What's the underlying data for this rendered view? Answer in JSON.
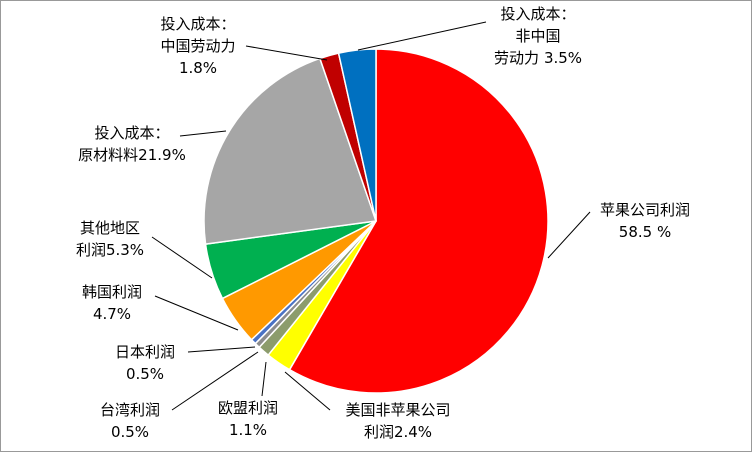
{
  "chart_data": {
    "type": "pie",
    "categories": [
      [
        "苹果公司利润"
      ],
      [
        "美国非苹果公司",
        "利润"
      ],
      [
        "欧盟利润"
      ],
      [
        "台湾利润"
      ],
      [
        "日本利润"
      ],
      [
        "韩国利润"
      ],
      [
        "其他地区",
        "利润"
      ],
      [
        "投入成本：",
        "原材料料"
      ],
      [
        "投入成本：",
        "中国劳动力"
      ],
      [
        "投入成本：",
        "非中国",
        "劳动力"
      ]
    ],
    "values": [
      58.5,
      2.4,
      1.1,
      0.5,
      0.5,
      4.7,
      5.3,
      21.9,
      1.8,
      3.5
    ],
    "value_labels": [
      "58.5 %",
      "2.4%",
      "1.1%",
      "0.5%",
      "0.5%",
      "4.7%",
      "5.3%",
      "21.9%",
      "1.8%",
      "3.5%"
    ],
    "colors": [
      "#ff0000",
      "#ffff00",
      "#8c9c6c",
      "#8c8c8c",
      "#4a72c4",
      "#ff9900",
      "#00b050",
      "#a6a6a6",
      "#c00000",
      "#0070c0"
    ]
  }
}
